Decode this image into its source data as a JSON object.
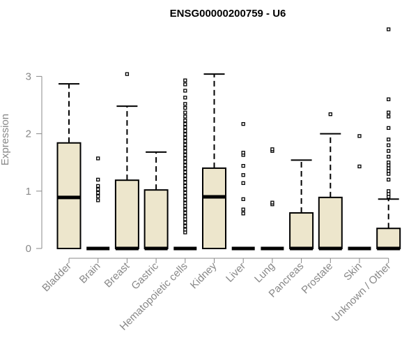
{
  "chart_data": {
    "type": "boxplot",
    "title": "ENSG00000200759 - U6",
    "xlabel": "",
    "ylabel": "Expression",
    "ylim": [
      0,
      3.9
    ],
    "yticks": [
      0,
      1,
      2,
      3
    ],
    "grid": false,
    "colors": {
      "box_fill": "#ede6cc",
      "stroke": "#000000",
      "axis_text": "#888888"
    },
    "categories": [
      "Bladder",
      "Brain",
      "Breast",
      "Gastric",
      "Hematopoietic cells",
      "Kidney",
      "Liver",
      "Lung",
      "Pancreas",
      "Prostate",
      "Skin",
      "Unknown / Other"
    ],
    "boxes": [
      {
        "q1": 0,
        "median": 0.89,
        "q3": 1.84,
        "whisker_low": 0,
        "whisker_high": 2.87,
        "outliers": []
      },
      {
        "q1": 0,
        "median": 0,
        "q3": 0,
        "whisker_low": 0,
        "whisker_high": 0,
        "outliers": [
          0.84,
          0.91,
          0.97,
          1.03,
          1.09,
          1.2,
          1.57
        ]
      },
      {
        "q1": 0,
        "median": 0,
        "q3": 1.19,
        "whisker_low": 0,
        "whisker_high": 2.48,
        "outliers": [
          3.04
        ]
      },
      {
        "q1": 0,
        "median": 0,
        "q3": 1.02,
        "whisker_low": 0,
        "whisker_high": 1.68,
        "outliers": []
      },
      {
        "q1": 0,
        "median": 0,
        "q3": 0,
        "whisker_low": 0,
        "whisker_high": 0,
        "outliers": [
          0.28,
          0.33,
          0.39,
          0.45,
          0.51,
          0.56,
          0.62,
          0.68,
          0.74,
          0.79,
          0.85,
          0.91,
          0.97,
          1.03,
          1.09,
          1.15,
          1.21,
          1.27,
          1.33,
          1.39,
          1.45,
          1.51,
          1.57,
          1.63,
          1.69,
          1.75,
          1.81,
          1.87,
          1.93,
          1.99,
          2.05,
          2.11,
          2.17,
          2.23,
          2.3,
          2.37,
          2.45,
          2.52,
          2.63,
          2.75,
          2.86,
          2.93
        ]
      },
      {
        "q1": 0,
        "median": 0.9,
        "q3": 1.4,
        "whisker_low": 0,
        "whisker_high": 3.04,
        "outliers": []
      },
      {
        "q1": 0,
        "median": 0,
        "q3": 0,
        "whisker_low": 0,
        "whisker_high": 0,
        "outliers": [
          0.61,
          0.68,
          0.86,
          1.14,
          1.28,
          1.44,
          1.63,
          1.67,
          2.17
        ]
      },
      {
        "q1": 0,
        "median": 0,
        "q3": 0,
        "whisker_low": 0,
        "whisker_high": 0,
        "outliers": [
          0.77,
          0.8,
          1.7,
          1.73
        ]
      },
      {
        "q1": 0,
        "median": 0,
        "q3": 0.62,
        "whisker_low": 0,
        "whisker_high": 1.54,
        "outliers": []
      },
      {
        "q1": 0,
        "median": 0,
        "q3": 0.89,
        "whisker_low": 0,
        "whisker_high": 2.0,
        "outliers": [
          2.34
        ]
      },
      {
        "q1": 0,
        "median": 0,
        "q3": 0,
        "whisker_low": 0,
        "whisker_high": 0,
        "outliers": [
          1.43,
          1.96
        ]
      },
      {
        "q1": 0,
        "median": 0,
        "q3": 0.35,
        "whisker_low": 0,
        "whisker_high": 0.86,
        "outliers": [
          0.9,
          0.95,
          1.0,
          1.2,
          1.3,
          1.35,
          1.4,
          1.45,
          1.5,
          1.6,
          1.7,
          1.8,
          1.9,
          2.1,
          2.3,
          2.37,
          2.6,
          3.82
        ]
      }
    ]
  }
}
